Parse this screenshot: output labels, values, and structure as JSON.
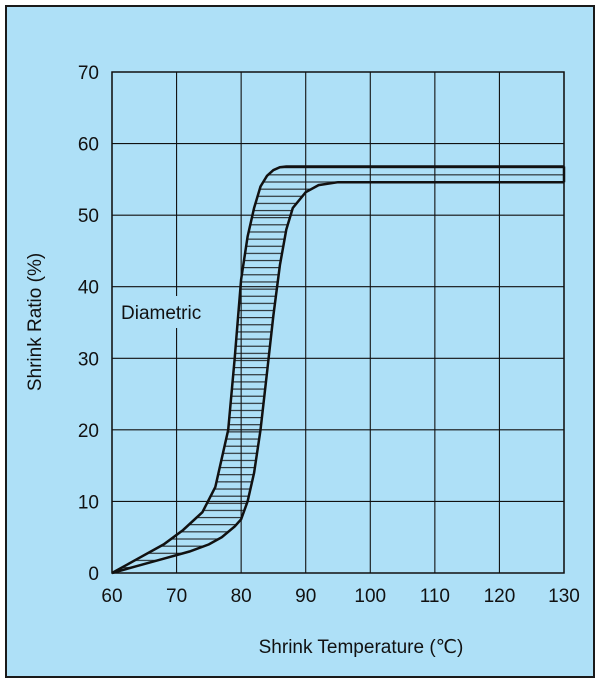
{
  "page": {
    "background": "#aee0f7",
    "frame_color": "#1a1a1a"
  },
  "chart_data": {
    "type": "area",
    "xlabel": "Shrink Temperature (℃)",
    "ylabel": "Shrink Ratio (%)",
    "xlim": [
      60,
      130
    ],
    "ylim": [
      0,
      70
    ],
    "x_ticks": [
      60,
      70,
      80,
      90,
      100,
      110,
      120,
      130
    ],
    "y_ticks": [
      0,
      10,
      20,
      30,
      40,
      50,
      60,
      70
    ],
    "x_tick_labels": [
      "60",
      "70",
      "80",
      "90",
      "100",
      "110",
      "120",
      "130"
    ],
    "y_tick_labels": [
      "0",
      "10",
      "20",
      "30",
      "40",
      "50",
      "60",
      "70"
    ],
    "grid": true,
    "annotation": "Diametric",
    "band": {
      "upper": {
        "x": [
          60,
          64,
          68,
          71,
          74,
          76,
          78,
          79,
          80,
          81,
          82,
          83,
          84,
          85,
          86,
          87,
          88,
          90,
          100,
          110,
          120,
          130
        ],
        "y": [
          0,
          2,
          4,
          6,
          8.5,
          12,
          20,
          30,
          41,
          47,
          51,
          54,
          55.5,
          56.3,
          56.7,
          56.8,
          56.8,
          56.8,
          56.8,
          56.8,
          56.8,
          56.8
        ]
      },
      "lower": {
        "x": [
          60,
          64,
          68,
          72,
          75,
          77,
          79,
          80,
          81,
          82,
          83,
          84,
          85,
          86,
          87,
          88,
          90,
          92,
          95,
          100,
          110,
          120,
          130
        ],
        "y": [
          0,
          1,
          2,
          3,
          4,
          5,
          6.5,
          7.5,
          10,
          14,
          20,
          28,
          36,
          43,
          48,
          51,
          53.2,
          54.2,
          54.6,
          54.6,
          54.6,
          54.6,
          54.6
        ]
      }
    }
  }
}
